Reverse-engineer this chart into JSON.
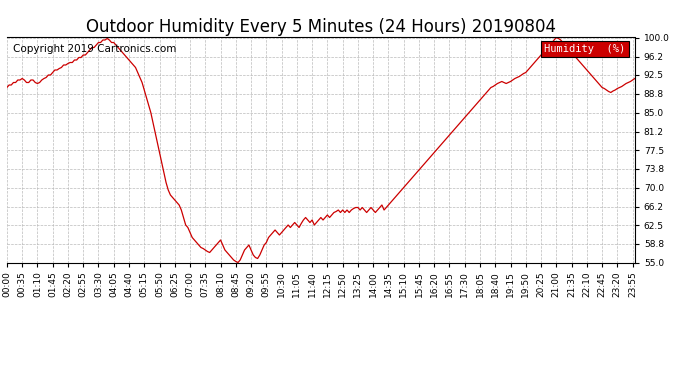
{
  "title": "Outdoor Humidity Every 5 Minutes (24 Hours) 20190804",
  "copyright": "Copyright 2019 Cartronics.com",
  "legend_label": "Humidity  (%)",
  "legend_bg": "#CC0000",
  "legend_text_color": "#FFFFFF",
  "line_color": "#CC0000",
  "background_color": "#FFFFFF",
  "grid_color": "#BBBBBB",
  "ylim": [
    55.0,
    100.0
  ],
  "yticks": [
    55.0,
    58.8,
    62.5,
    66.2,
    70.0,
    73.8,
    77.5,
    81.2,
    85.0,
    88.8,
    92.5,
    96.2,
    100.0
  ],
  "title_fontsize": 12,
  "copyright_fontsize": 7.5,
  "tick_fontsize": 6.5,
  "humidity_data": [
    90.0,
    90.5,
    90.5,
    91.0,
    91.0,
    91.5,
    91.5,
    91.8,
    91.5,
    91.0,
    91.0,
    91.5,
    91.5,
    91.0,
    90.8,
    91.0,
    91.5,
    91.8,
    92.0,
    92.5,
    92.5,
    93.0,
    93.5,
    93.5,
    93.8,
    94.0,
    94.5,
    94.5,
    94.8,
    95.0,
    95.0,
    95.5,
    95.5,
    96.0,
    96.0,
    96.5,
    96.5,
    97.0,
    97.5,
    98.0,
    98.0,
    98.5,
    99.0,
    99.0,
    99.5,
    99.5,
    99.8,
    99.5,
    99.0,
    99.0,
    98.5,
    98.0,
    97.5,
    97.0,
    96.5,
    96.0,
    95.5,
    95.0,
    94.5,
    94.0,
    93.0,
    92.0,
    91.0,
    89.5,
    88.0,
    86.5,
    85.0,
    83.0,
    81.0,
    79.0,
    77.0,
    75.0,
    73.0,
    71.0,
    69.5,
    68.5,
    68.0,
    67.5,
    67.0,
    66.5,
    65.5,
    64.0,
    62.5,
    62.0,
    61.0,
    60.0,
    59.5,
    59.0,
    58.5,
    58.0,
    57.8,
    57.5,
    57.2,
    57.0,
    57.5,
    58.0,
    58.5,
    59.0,
    59.5,
    58.5,
    57.5,
    57.0,
    56.5,
    56.0,
    55.5,
    55.2,
    55.0,
    55.5,
    56.5,
    57.5,
    58.0,
    58.5,
    57.5,
    56.5,
    56.0,
    55.8,
    56.5,
    57.5,
    58.5,
    59.0,
    60.0,
    60.5,
    61.0,
    61.5,
    61.0,
    60.5,
    61.0,
    61.5,
    62.0,
    62.5,
    62.0,
    62.5,
    63.0,
    62.5,
    62.0,
    62.8,
    63.5,
    64.0,
    63.5,
    63.0,
    63.5,
    62.5,
    63.0,
    63.5,
    64.0,
    63.5,
    64.0,
    64.5,
    64.0,
    64.5,
    65.0,
    65.2,
    65.5,
    65.0,
    65.5,
    65.0,
    65.5,
    65.0,
    65.5,
    65.8,
    66.0,
    66.0,
    65.5,
    66.0,
    65.5,
    65.0,
    65.5,
    66.0,
    65.5,
    65.0,
    65.5,
    66.0,
    66.5,
    65.5,
    66.0,
    66.5,
    67.0,
    67.5,
    68.0,
    68.5,
    69.0,
    69.5,
    70.0,
    70.5,
    71.0,
    71.5,
    72.0,
    72.5,
    73.0,
    73.5,
    74.0,
    74.5,
    75.0,
    75.5,
    76.0,
    76.5,
    77.0,
    77.5,
    78.0,
    78.5,
    79.0,
    79.5,
    80.0,
    80.5,
    81.0,
    81.5,
    82.0,
    82.5,
    83.0,
    83.5,
    84.0,
    84.5,
    85.0,
    85.5,
    86.0,
    86.5,
    87.0,
    87.5,
    88.0,
    88.5,
    89.0,
    89.5,
    90.0,
    90.2,
    90.5,
    90.8,
    91.0,
    91.2,
    91.0,
    90.8,
    91.0,
    91.2,
    91.5,
    91.8,
    92.0,
    92.2,
    92.5,
    92.8,
    93.0,
    93.5,
    94.0,
    94.5,
    95.0,
    95.5,
    96.0,
    96.5,
    97.0,
    97.5,
    98.0,
    98.5,
    99.0,
    99.5,
    100.0,
    99.8,
    99.5,
    99.0,
    98.5,
    98.0,
    97.5,
    97.0,
    96.5,
    96.0,
    95.5,
    95.0,
    94.5,
    94.0,
    93.5,
    93.0,
    92.5,
    92.0,
    91.5,
    91.0,
    90.5,
    90.0,
    89.8,
    89.5,
    89.2,
    89.0,
    89.3,
    89.5,
    89.8,
    90.0,
    90.2,
    90.5,
    90.8,
    91.0,
    91.2,
    91.5,
    91.8
  ]
}
